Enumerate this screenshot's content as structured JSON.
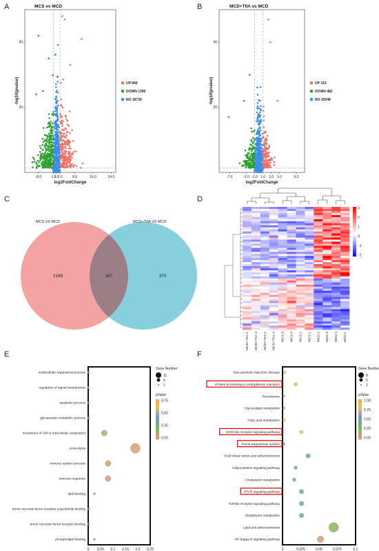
{
  "panels": {
    "a": {
      "letter": "A",
      "title": "MCS vs MCD"
    },
    "b": {
      "letter": "B",
      "title": "MCD+TIIA vs MCD"
    },
    "c": {
      "letter": "C"
    },
    "d": {
      "letter": "D"
    },
    "e": {
      "letter": "E"
    },
    "f": {
      "letter": "F"
    }
  },
  "colors": {
    "up": "#f07167",
    "down": "#2ca02c",
    "no": "#3b8ee8",
    "venn_a": "#f4a3a3",
    "venn_b": "#87cfdc",
    "venn_overlap": "#9c7f86"
  },
  "chart_data": [
    {
      "type": "scatter",
      "id": "volcano-a",
      "title": "MCS vs MCD",
      "xlabel": "log2FoldChange",
      "ylabel": "-log10(pvalue)",
      "xticks": [
        "-8.0",
        "-1.5",
        "0.0",
        "1.5",
        "8.0",
        "16.0",
        "24.0"
      ],
      "yticks": [
        "20",
        "40"
      ],
      "xlim": [
        -14,
        26
      ],
      "ylim": [
        0,
        50
      ],
      "thresholds": {
        "log2fc": [
          -1.5,
          1.5
        ]
      },
      "legend_placement": "right",
      "series": [
        {
          "name": "UP 840",
          "color": "#f07167"
        },
        {
          "name": "DOWN 1396",
          "color": "#2ca02c"
        },
        {
          "name": "NO 18739",
          "color": "#3b8ee8"
        }
      ]
    },
    {
      "type": "scatter",
      "id": "volcano-b",
      "title": "MCD+TIIA vs MCD",
      "xlabel": "log2FoldChange",
      "ylabel": "-log10(pvalue)",
      "xticks": [
        "-7.0",
        "-3.0",
        "-1.0",
        "1.0",
        "3.0",
        "5.0",
        "9.0"
      ],
      "yticks": [
        "20",
        "40"
      ],
      "xlim": [
        -9.5,
        11
      ],
      "ylim": [
        0,
        50
      ],
      "thresholds": {
        "log2fc": [
          -1.0,
          1.0
        ]
      },
      "legend_placement": "right",
      "series": [
        {
          "name": "UP 310",
          "color": "#f07167"
        },
        {
          "name": "DOWN 482",
          "color": "#2ca02c"
        },
        {
          "name": "NO 20548",
          "color": "#3b8ee8"
        }
      ]
    },
    {
      "type": "venn",
      "id": "venn-c",
      "sets": [
        {
          "name": "MCS VS MCD",
          "only": "2189"
        },
        {
          "name": "MCD+TIIA VS MCD",
          "only": "370"
        }
      ],
      "overlap": "347"
    },
    {
      "type": "heatmap",
      "id": "heatmap-d",
      "columns": [
        "MCD+TIIA-1",
        "MCD+TIIA-3",
        "MCD+TIIA-2",
        "MCD+TIIA-4",
        "MCS-3",
        "MCS-4",
        "MCS-2",
        "MCS-1",
        "MCD-2",
        "MCD-3",
        "MCD-4",
        "MCD-1"
      ],
      "colorbar": {
        "ticks": [
          "3",
          "2",
          "1",
          "0",
          "−1",
          "−2"
        ],
        "range": [
          -2.5,
          3
        ]
      }
    },
    {
      "type": "scatter",
      "id": "enrich-e",
      "subtype": "bubble",
      "categories": [
        "multicellular organismal process",
        "regulation of signal transduction",
        "apoptotic process",
        "glycoprotein metabolic process",
        "movement of cell or subcellular component",
        "proteolysis",
        "immune system process",
        "immune response",
        "lipid binding",
        "tumor necrosis factor receptor superfamily binding",
        "tumor necrosis factor receptor binding",
        "phospholipid binding"
      ],
      "x": [
        0.002,
        0.002,
        0.002,
        0.002,
        0.065,
        0.19,
        0.08,
        0.08,
        0.025,
        0.002,
        0.002,
        0.025
      ],
      "size": [
        1,
        1,
        1,
        1,
        6,
        11,
        6,
        6,
        1,
        1,
        1,
        1
      ],
      "pvalue": [
        0.5,
        0.7,
        0.5,
        0.5,
        0.1,
        0.03,
        0.06,
        0.05,
        0.45,
        0.35,
        0.35,
        0.4
      ],
      "xticks": [
        "0",
        "0.05",
        "0.1",
        "0.15",
        "0.2",
        "0.25"
      ],
      "xlim": [
        0,
        0.25
      ],
      "size_legend": {
        "title": "Gene Number",
        "values": [
          "11",
          "6",
          "1"
        ]
      },
      "color_legend": {
        "title": "pValue",
        "ticks": [
          "0.75",
          "0.50",
          "0.25",
          "0.00"
        ],
        "range": [
          0,
          0.8
        ]
      }
    },
    {
      "type": "scatter",
      "id": "enrich-f",
      "subtype": "bubble",
      "categories": [
        "Non-alcoholic fatty liver disease",
        "Protein processing in endoplasmic reticulum",
        "Peroxisome",
        "Glycerolipid metabolism",
        "Fatty acid metabolism",
        "NOD-like receptor signaling pathway",
        "Renin-angiotensin system",
        "Fluid shear stress and atherosclerosis",
        "Adipocytokine signaling pathway",
        "Cholesterol metabolism",
        "PPAR signaling pathway",
        "Toll-like receptor signaling pathway",
        "Glutathione metabolism",
        "Lipid and atherosclerosis",
        "NF-kappa B signaling pathway"
      ],
      "x": [
        0.003,
        0.018,
        0.002,
        0.002,
        0.002,
        0.026,
        0.002,
        0.035,
        0.018,
        0.016,
        0.026,
        0.026,
        0.026,
        0.07,
        0.052
      ],
      "size": [
        1,
        2,
        1,
        1,
        1,
        2,
        1,
        3,
        2,
        2,
        3,
        3,
        3,
        8,
        5
      ],
      "pvalue": [
        0.82,
        0.9,
        0.7,
        0.72,
        0.8,
        0.88,
        0.6,
        0.48,
        0.45,
        0.42,
        0.45,
        0.45,
        0.47,
        0.22,
        0.05
      ],
      "highlighted": [
        "Protein processing in endoplasmic reticulum",
        "NOD-like receptor signaling pathway",
        "Renin-angiotensin system",
        "PPAR signaling pathway"
      ],
      "xticks": [
        "0",
        "0.025",
        "0.05",
        "0.075",
        "0.1"
      ],
      "xlim": [
        0,
        0.1
      ],
      "size_legend": {
        "title": "Gene Number",
        "values": [
          "8",
          "5",
          "1"
        ]
      },
      "color_legend": {
        "title": "pValue",
        "ticks": [
          "1.00",
          "0.75",
          "0.50",
          "0.25",
          "0.00"
        ],
        "range": [
          0,
          1
        ]
      }
    }
  ]
}
